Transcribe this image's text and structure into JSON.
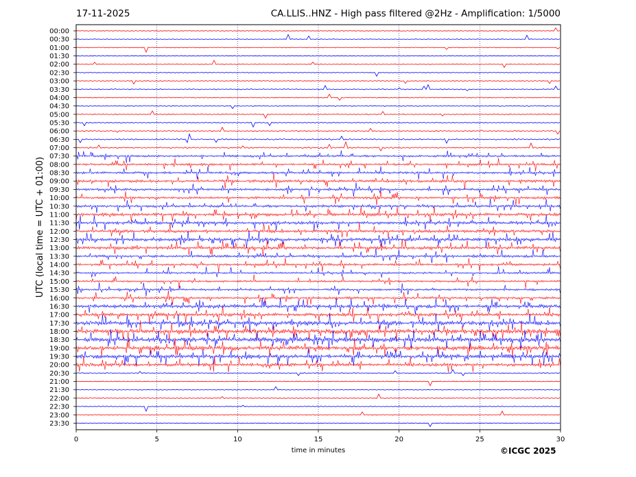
{
  "header": {
    "date": "17-11-2025",
    "title": "CA.LLIS..HNZ - High pass filtered @2Hz - Amplification: 1/5000"
  },
  "footer": {
    "copyright": "©ICGC 2025"
  },
  "chart_data": {
    "type": "line",
    "xlabel": "time in minutes",
    "ylabel": "UTC (local time = UTC + 01:00)",
    "xlim": [
      0,
      30
    ],
    "x_ticks": [
      0,
      5,
      10,
      15,
      20,
      25,
      30
    ],
    "grid": "vertical dotted at x ticks",
    "row_colors": [
      "#ff0000",
      "#0000ff"
    ],
    "rows": [
      {
        "label": "00:00",
        "activity": 0.03
      },
      {
        "label": "00:30",
        "activity": 0.03
      },
      {
        "label": "01:00",
        "activity": 0.03
      },
      {
        "label": "01:30",
        "activity": 0.03
      },
      {
        "label": "02:00",
        "activity": 0.05
      },
      {
        "label": "02:30",
        "activity": 0.05
      },
      {
        "label": "03:00",
        "activity": 0.08
      },
      {
        "label": "03:30",
        "activity": 0.08
      },
      {
        "label": "04:00",
        "activity": 0.1
      },
      {
        "label": "04:30",
        "activity": 0.12
      },
      {
        "label": "05:00",
        "activity": 0.1
      },
      {
        "label": "05:30",
        "activity": 0.1
      },
      {
        "label": "06:00",
        "activity": 0.15
      },
      {
        "label": "06:30",
        "activity": 0.2
      },
      {
        "label": "07:00",
        "activity": 0.2
      },
      {
        "label": "07:30",
        "activity": 0.4
      },
      {
        "label": "08:00",
        "activity": 0.4
      },
      {
        "label": "08:30",
        "activity": 0.45
      },
      {
        "label": "09:00",
        "activity": 0.55
      },
      {
        "label": "09:30",
        "activity": 0.45
      },
      {
        "label": "10:00",
        "activity": 0.45
      },
      {
        "label": "10:30",
        "activity": 0.5
      },
      {
        "label": "11:00",
        "activity": 0.6
      },
      {
        "label": "11:30",
        "activity": 0.65
      },
      {
        "label": "12:00",
        "activity": 0.6
      },
      {
        "label": "12:30",
        "activity": 0.7
      },
      {
        "label": "13:00",
        "activity": 0.65
      },
      {
        "label": "13:30",
        "activity": 0.5
      },
      {
        "label": "14:00",
        "activity": 0.45
      },
      {
        "label": "14:30",
        "activity": 0.35
      },
      {
        "label": "15:00",
        "activity": 0.35
      },
      {
        "label": "15:30",
        "activity": 0.4
      },
      {
        "label": "16:00",
        "activity": 0.45
      },
      {
        "label": "16:30",
        "activity": 0.7
      },
      {
        "label": "17:00",
        "activity": 0.65
      },
      {
        "label": "17:30",
        "activity": 0.9
      },
      {
        "label": "18:00",
        "activity": 1.0
      },
      {
        "label": "18:30",
        "activity": 1.0
      },
      {
        "label": "19:00",
        "activity": 0.95
      },
      {
        "label": "19:30",
        "activity": 0.85
      },
      {
        "label": "20:00",
        "activity": 0.65
      },
      {
        "label": "20:30",
        "activity": 0.1
      },
      {
        "label": "21:00",
        "activity": 0.03
      },
      {
        "label": "21:30",
        "activity": 0.03
      },
      {
        "label": "22:00",
        "activity": 0.04
      },
      {
        "label": "22:30",
        "activity": 0.03
      },
      {
        "label": "23:00",
        "activity": 0.03
      },
      {
        "label": "23:30",
        "activity": 0.03
      }
    ]
  }
}
